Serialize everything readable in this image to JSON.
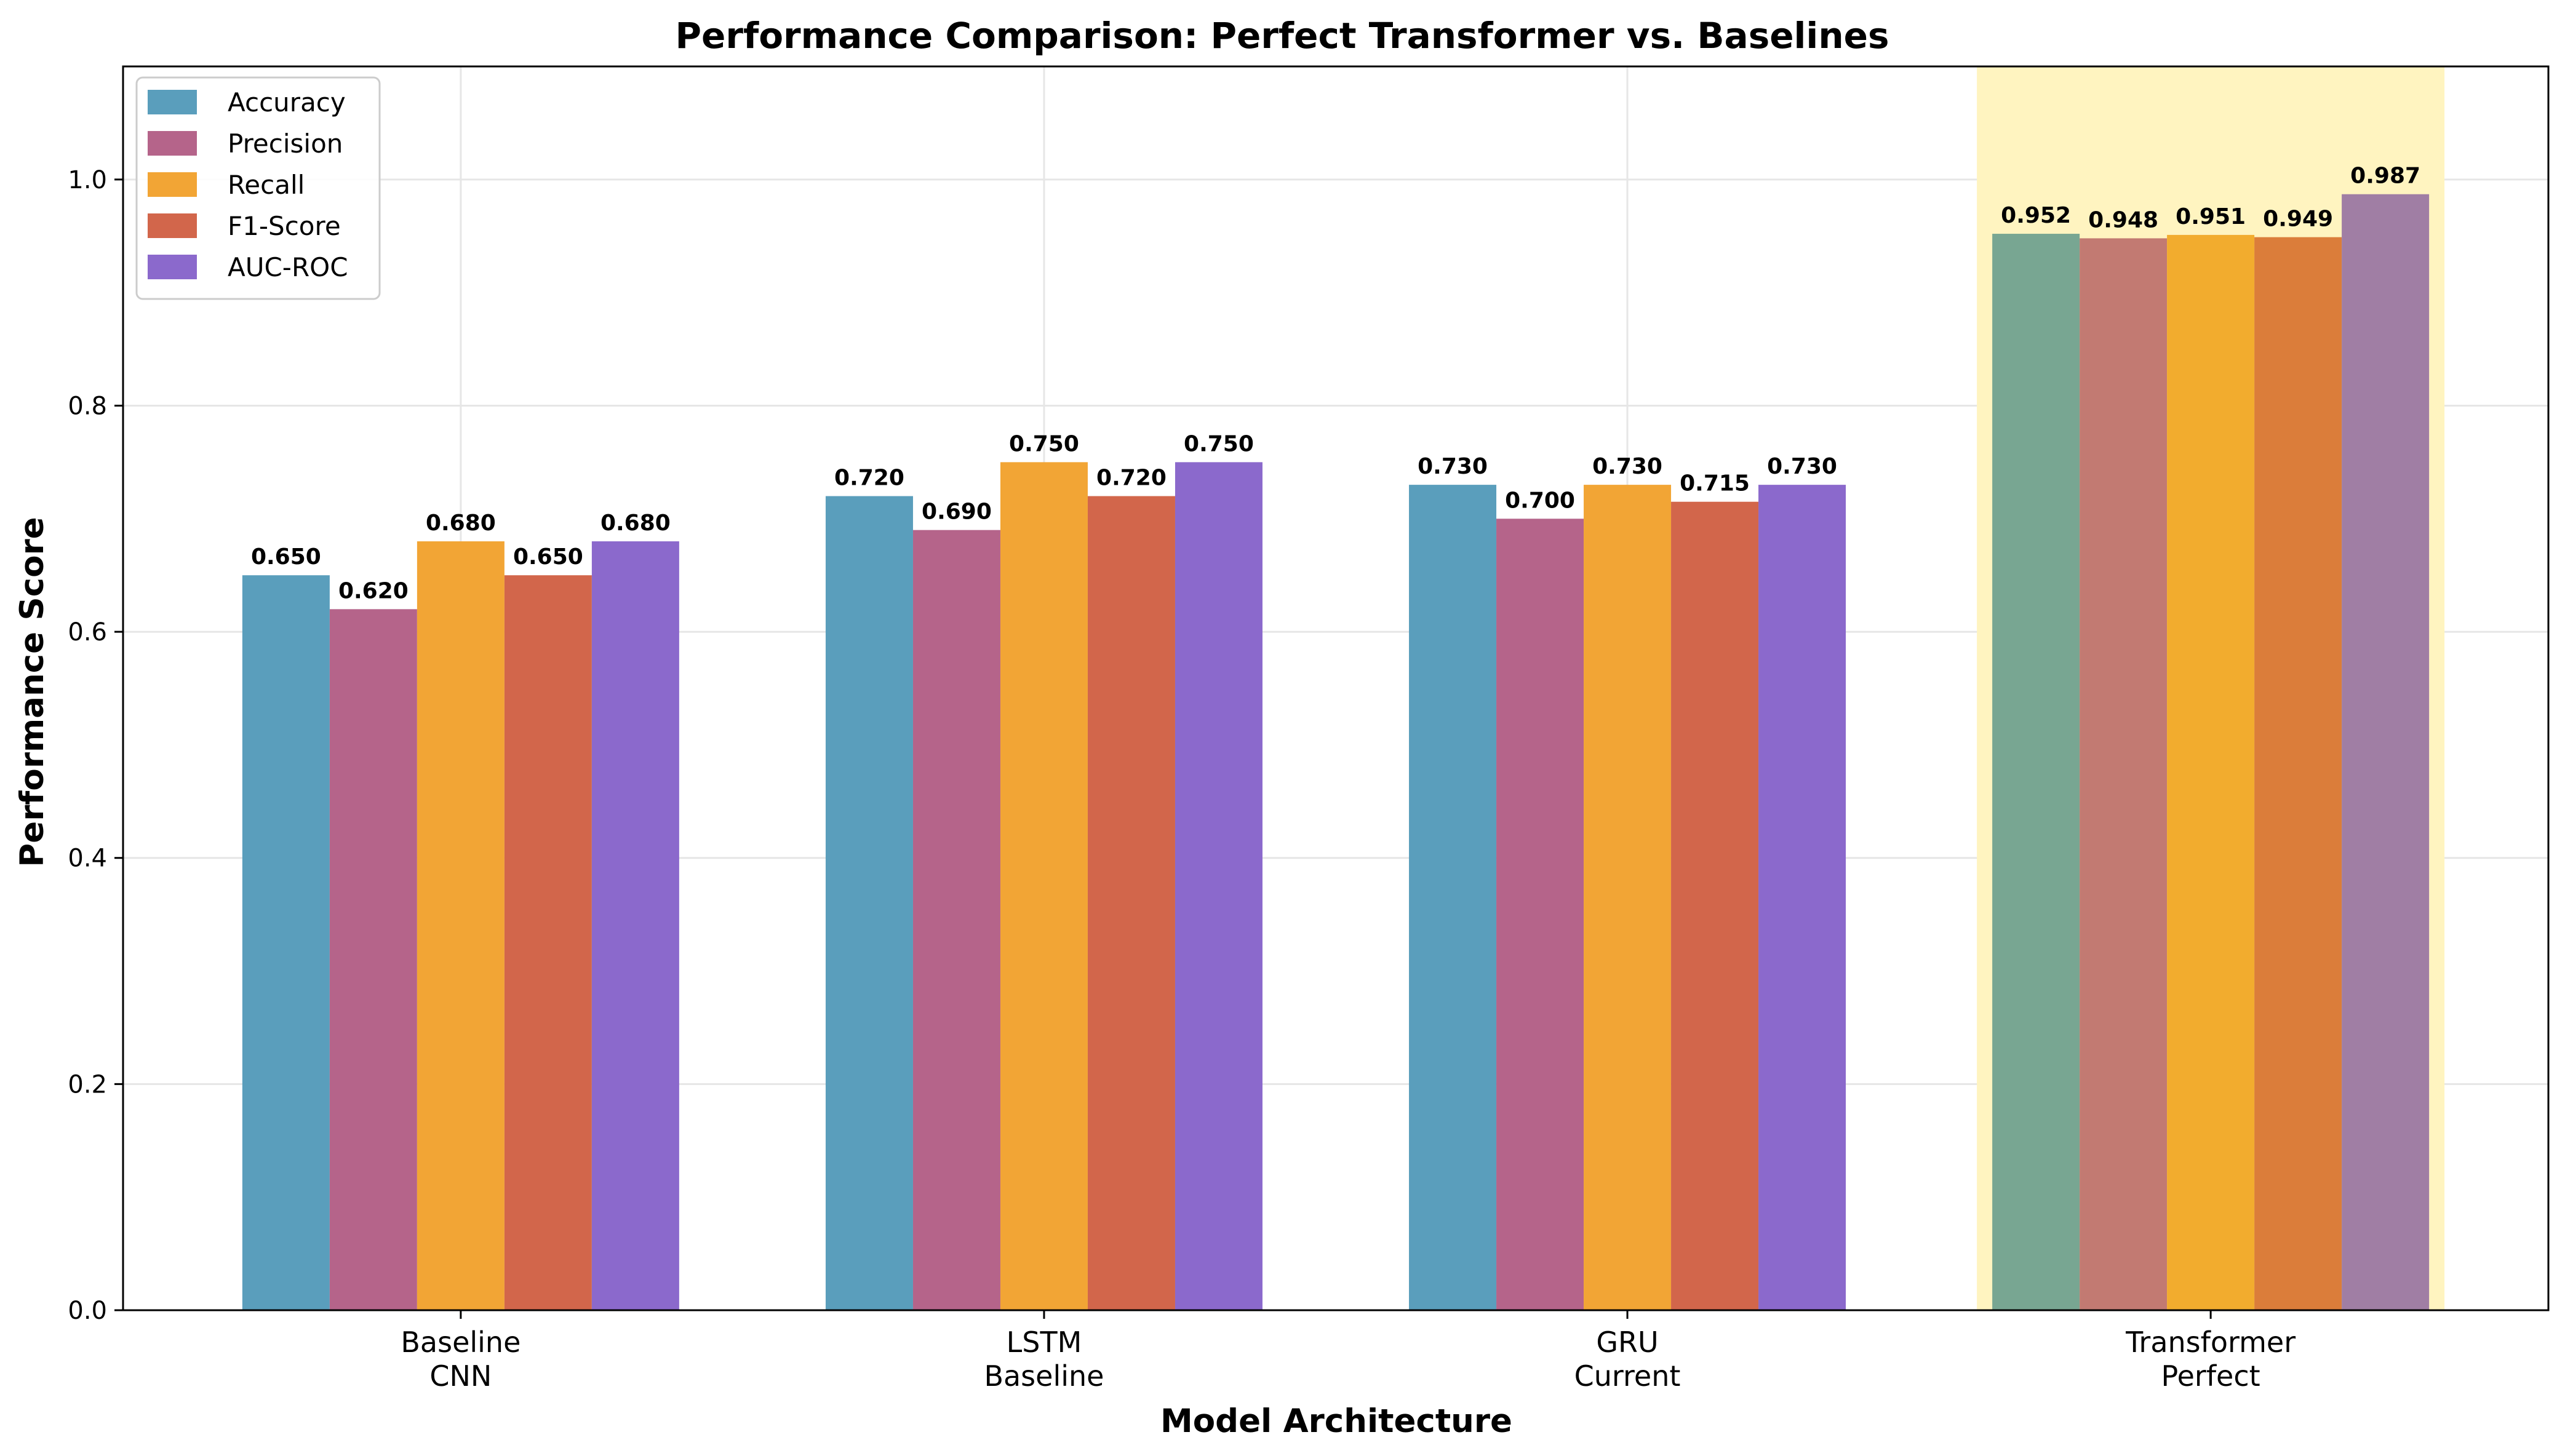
{
  "chart_data": {
    "type": "bar",
    "title": "Performance Comparison: Perfect Transformer vs. Baselines",
    "xlabel": "Model Architecture",
    "ylabel": "Performance Score",
    "ylim": [
      0,
      1.1
    ],
    "yticks": [
      "0.0",
      "0.2",
      "0.4",
      "0.6",
      "0.8",
      "1.0"
    ],
    "grid": true,
    "legend_position": "top-left",
    "categories": [
      {
        "line1": "Baseline",
        "line2": "CNN"
      },
      {
        "line1": "LSTM",
        "line2": "Baseline"
      },
      {
        "line1": "GRU",
        "line2": "Current"
      },
      {
        "line1": "Transformer",
        "line2": "Perfect"
      }
    ],
    "highlighted_category_index": 3,
    "highlight_color": "#FFF4C0",
    "series": [
      {
        "name": "Accuracy",
        "color": "#5A9EBC",
        "highlight_color": "#78A692",
        "values": [
          0.65,
          0.72,
          0.73,
          0.952
        ],
        "labels": [
          "0.650",
          "0.720",
          "0.730",
          "0.952"
        ]
      },
      {
        "name": "Precision",
        "color": "#B5648A",
        "highlight_color": "#C27A72",
        "values": [
          0.62,
          0.69,
          0.7,
          0.948
        ],
        "labels": [
          "0.620",
          "0.690",
          "0.700",
          "0.948"
        ]
      },
      {
        "name": "Recall",
        "color": "#F2A535",
        "highlight_color": "#F2AC2E",
        "values": [
          0.68,
          0.75,
          0.73,
          0.951
        ],
        "labels": [
          "0.680",
          "0.750",
          "0.730",
          "0.951"
        ]
      },
      {
        "name": "F1-Score",
        "color": "#D2664B",
        "highlight_color": "#DB7D3A",
        "values": [
          0.65,
          0.72,
          0.715,
          0.949
        ],
        "labels": [
          "0.650",
          "0.720",
          "0.715",
          "0.949"
        ]
      },
      {
        "name": "AUC-ROC",
        "color": "#8B69CC",
        "highlight_color": "#A07EA4",
        "values": [
          0.68,
          0.75,
          0.73,
          0.987
        ],
        "labels": [
          "0.680",
          "0.750",
          "0.730",
          "0.987"
        ]
      }
    ]
  }
}
